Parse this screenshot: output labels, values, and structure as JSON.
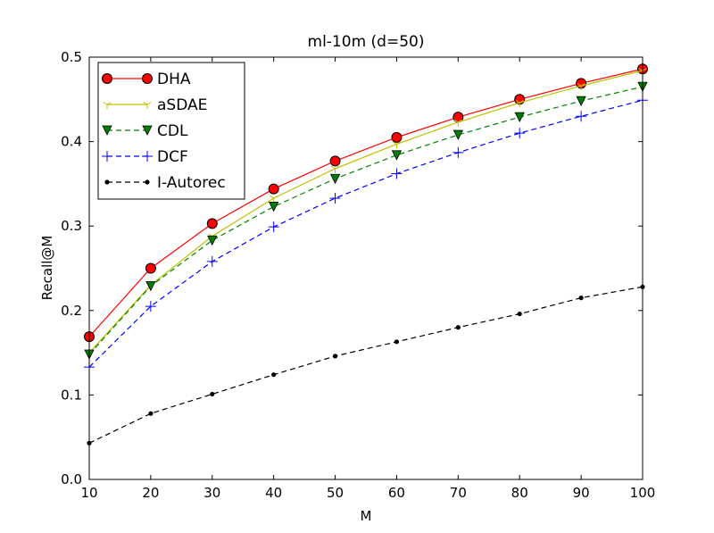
{
  "chart_data": {
    "type": "line",
    "title": "ml-10m (d=50)",
    "xlabel": "M",
    "ylabel": "Recall@M",
    "xlim": [
      10,
      100
    ],
    "ylim": [
      0.0,
      0.5
    ],
    "x": [
      10,
      20,
      30,
      40,
      50,
      60,
      70,
      80,
      90,
      100
    ],
    "xticks": [
      "10",
      "20",
      "30",
      "40",
      "50",
      "60",
      "70",
      "80",
      "90",
      "100"
    ],
    "yticks": [
      "0.0",
      "0.1",
      "0.2",
      "0.3",
      "0.4",
      "0.5"
    ],
    "grid": false,
    "legend_position": "top-left",
    "series": [
      {
        "name": "DHA",
        "color": "#ff0000",
        "marker": "circle",
        "linestyle": "solid",
        "values": [
          0.169,
          0.25,
          0.303,
          0.344,
          0.377,
          0.405,
          0.429,
          0.45,
          0.469,
          0.486
        ]
      },
      {
        "name": "aSDAE",
        "color": "#bfbf00",
        "marker": "tri_down",
        "linestyle": "solid",
        "values": [
          0.15,
          0.23,
          0.288,
          0.333,
          0.368,
          0.397,
          0.423,
          0.446,
          0.466,
          0.484
        ]
      },
      {
        "name": "CDL",
        "color": "#008000",
        "marker": "triangle_down",
        "linestyle": "dashed",
        "values": [
          0.148,
          0.229,
          0.283,
          0.323,
          0.356,
          0.384,
          0.408,
          0.429,
          0.448,
          0.465
        ]
      },
      {
        "name": "DCF",
        "color": "#0000ff",
        "marker": "plus",
        "linestyle": "dashed",
        "values": [
          0.133,
          0.205,
          0.258,
          0.299,
          0.333,
          0.362,
          0.387,
          0.41,
          0.43,
          0.449
        ]
      },
      {
        "name": "I-Autorec",
        "color": "#000000",
        "marker": "dot",
        "linestyle": "dashed",
        "values": [
          0.043,
          0.078,
          0.101,
          0.124,
          0.146,
          0.163,
          0.18,
          0.196,
          0.215,
          0.228
        ]
      }
    ]
  }
}
